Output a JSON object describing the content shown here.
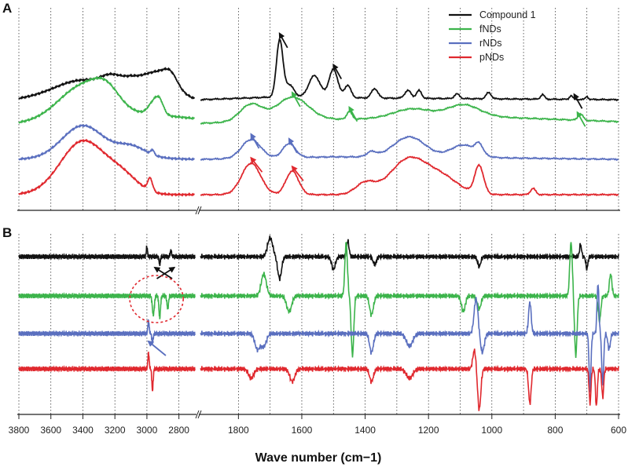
{
  "figure": {
    "panel_labels": [
      "A",
      "B"
    ],
    "xlabel": "Wave number (cm−1)"
  },
  "colors": {
    "Compound 1": "#111111",
    "fNDs": "#3cb44b",
    "rNDs": "#5a6fbf",
    "pNDs": "#e0282e",
    "marker_black": "#111111",
    "marker_green": "#3cb44b",
    "marker_blue": "#5a6fbf",
    "marker_red": "#e0282e",
    "circle": "#e0282e"
  },
  "chart_data": [
    {
      "panel": "A",
      "type": "line",
      "title": "",
      "xlabel": "Wave number (cm−1)",
      "ylabel": "",
      "x_axis": "reversed, broken between 2700 and 1920",
      "xlim_left_segment": [
        3800,
        2700
      ],
      "xlim_right_segment": [
        1920,
        600
      ],
      "ticks_left": [
        "3800",
        "3600",
        "3400",
        "3200",
        "3000",
        "2800"
      ],
      "ticks_right": [
        "1800",
        "1600",
        "1400",
        "1200",
        "1000",
        "800",
        "600"
      ],
      "grid": "dotted vertical",
      "legend": {
        "placement": "top-right",
        "entries": [
          "Compound 1",
          "fNDs",
          "rNDs",
          "pNDs"
        ]
      },
      "series": [
        {
          "name": "Compound 1",
          "offset": 3,
          "scale": 1.0,
          "baseline_left": [
            [
              3800,
              0.02
            ],
            [
              3100,
              0.35
            ],
            [
              2700,
              0.0
            ]
          ],
          "baseline_right": [
            [
              1920,
              0.0
            ],
            [
              1700,
              0.08
            ],
            [
              1200,
              0.04
            ],
            [
              600,
              0.0
            ]
          ],
          "peaks": [
            [
              3420,
              0.42,
              160
            ],
            [
              3230,
              0.25,
              60
            ],
            [
              3100,
              0.25,
              80
            ],
            [
              2920,
              0.65,
              90
            ],
            [
              2850,
              0.3,
              40
            ],
            [
              1670,
              1.8,
              10
            ],
            [
              1640,
              0.4,
              15
            ],
            [
              1560,
              0.7,
              18
            ],
            [
              1500,
              0.9,
              14
            ],
            [
              1455,
              0.4,
              10
            ],
            [
              1370,
              0.3,
              10
            ],
            [
              1265,
              0.25,
              10
            ],
            [
              1230,
              0.25,
              8
            ],
            [
              1110,
              0.15,
              8
            ],
            [
              1010,
              0.2,
              8
            ],
            [
              840,
              0.15,
              6
            ],
            [
              750,
              0.12,
              5
            ],
            [
              700,
              0.1,
              4
            ]
          ]
        },
        {
          "name": "fNDs",
          "offset": 2,
          "scale": 1.0,
          "baseline_left": [
            [
              3800,
              0.0
            ],
            [
              3000,
              0.3
            ],
            [
              2700,
              0.15
            ]
          ],
          "baseline_right": [
            [
              1920,
              0.0
            ],
            [
              1500,
              0.12
            ],
            [
              1000,
              0.2
            ],
            [
              600,
              0.05
            ]
          ],
          "peaks": [
            [
              3400,
              1.05,
              150
            ],
            [
              3250,
              0.5,
              80
            ],
            [
              2960,
              0.35,
              30
            ],
            [
              2920,
              0.4,
              25
            ],
            [
              1760,
              0.55,
              35
            ],
            [
              1630,
              0.75,
              50
            ],
            [
              1450,
              0.25,
              8
            ],
            [
              1250,
              0.3,
              60
            ],
            [
              1090,
              0.4,
              50
            ],
            [
              720,
              0.2,
              8
            ]
          ]
        },
        {
          "name": "rNDs",
          "offset": 1,
          "scale": 1.0,
          "baseline_left": [
            [
              3800,
              0.0
            ],
            [
              3000,
              0.05
            ],
            [
              2700,
              0.0
            ]
          ],
          "baseline_right": [
            [
              1920,
              0.0
            ],
            [
              1500,
              0.08
            ],
            [
              1000,
              0.05
            ],
            [
              600,
              0.0
            ]
          ],
          "peaks": [
            [
              3400,
              1.05,
              130
            ],
            [
              3100,
              0.35,
              90
            ],
            [
              2965,
              0.15,
              10
            ],
            [
              1760,
              0.6,
              30
            ],
            [
              1640,
              0.45,
              20
            ],
            [
              1380,
              0.15,
              15
            ],
            [
              1260,
              0.65,
              50
            ],
            [
              1090,
              0.4,
              40
            ],
            [
              1040,
              0.3,
              12
            ]
          ]
        },
        {
          "name": "pNDs",
          "offset": 0,
          "scale": 1.0,
          "baseline_left": [
            [
              3800,
              0.0
            ],
            [
              3000,
              0.0
            ],
            [
              2700,
              0.0
            ]
          ],
          "baseline_right": [
            [
              1920,
              0.0
            ],
            [
              600,
              0.0
            ]
          ],
          "peaks": [
            [
              3400,
              1.7,
              140
            ],
            [
              3150,
              0.5,
              100
            ],
            [
              2980,
              0.4,
              15
            ],
            [
              1760,
              1.0,
              30
            ],
            [
              1630,
              0.75,
              20
            ],
            [
              1400,
              0.35,
              30
            ],
            [
              1260,
              1.15,
              60
            ],
            [
              1150,
              0.45,
              50
            ],
            [
              1040,
              0.9,
              14
            ],
            [
              870,
              0.2,
              8
            ]
          ]
        }
      ],
      "markers": [
        {
          "color": "marker_black",
          "x": 1670,
          "series": "Compound 1"
        },
        {
          "color": "marker_black",
          "x": 1500,
          "series": "Compound 1"
        },
        {
          "color": "marker_black",
          "x": 740,
          "series": "Compound 1"
        },
        {
          "color": "marker_green",
          "x": 1630,
          "series": "fNDs"
        },
        {
          "color": "marker_green",
          "x": 1450,
          "series": "fNDs"
        },
        {
          "color": "marker_green",
          "x": 730,
          "series": "fNDs"
        },
        {
          "color": "marker_blue",
          "x": 1760,
          "series": "rNDs"
        },
        {
          "color": "marker_blue",
          "x": 1640,
          "series": "rNDs"
        },
        {
          "color": "marker_red",
          "x": 1760,
          "series": "pNDs"
        },
        {
          "color": "marker_red",
          "x": 1630,
          "series": "pNDs"
        }
      ]
    },
    {
      "panel": "B",
      "type": "line",
      "title": "",
      "xlabel": "Wave number (cm−1)",
      "ylabel": "",
      "description_kind": "second derivative spectra",
      "series": [
        {
          "name": "Compound 1",
          "offset": 3,
          "features": [
            [
              3000,
              0.3,
              4
            ],
            [
              2920,
              -0.25,
              4
            ],
            [
              2850,
              0.2,
              4
            ],
            [
              1700,
              0.6,
              8
            ],
            [
              1670,
              -0.7,
              6
            ],
            [
              1500,
              -0.4,
              6
            ],
            [
              1455,
              0.5,
              4
            ],
            [
              1370,
              -0.25,
              5
            ],
            [
              1040,
              -0.3,
              5
            ],
            [
              720,
              0.4,
              3
            ],
            [
              700,
              -0.4,
              3
            ]
          ]
        },
        {
          "name": "fNDs",
          "offset": 2,
          "features": [
            [
              2960,
              -0.6,
              6
            ],
            [
              2920,
              -0.7,
              5
            ],
            [
              2870,
              -0.4,
              5
            ],
            [
              1720,
              0.7,
              8
            ],
            [
              1640,
              -0.5,
              8
            ],
            [
              1460,
              1.7,
              4
            ],
            [
              1440,
              -1.9,
              4
            ],
            [
              1380,
              -0.6,
              6
            ],
            [
              1090,
              -0.5,
              6
            ],
            [
              1040,
              -0.4,
              6
            ],
            [
              750,
              1.7,
              4
            ],
            [
              735,
              -1.9,
              4
            ],
            [
              660,
              -0.8,
              4
            ],
            [
              625,
              0.7,
              4
            ]
          ]
        },
        {
          "name": "rNDs",
          "offset": 1,
          "features": [
            [
              2990,
              0.4,
              4
            ],
            [
              2965,
              -0.3,
              4
            ],
            [
              1740,
              -0.5,
              8
            ],
            [
              1720,
              -0.4,
              8
            ],
            [
              1380,
              -0.6,
              6
            ],
            [
              1260,
              -0.4,
              10
            ],
            [
              1050,
              1.1,
              6
            ],
            [
              1030,
              -0.6,
              6
            ],
            [
              880,
              1.0,
              4
            ],
            [
              690,
              -1.8,
              3
            ],
            [
              665,
              1.6,
              3
            ],
            [
              650,
              -1.6,
              3
            ],
            [
              630,
              -0.5,
              4
            ]
          ]
        },
        {
          "name": "pNDs",
          "offset": 0,
          "features": [
            [
              2990,
              0.5,
              4
            ],
            [
              2965,
              -0.7,
              4
            ],
            [
              1760,
              -0.3,
              8
            ],
            [
              1630,
              -0.4,
              8
            ],
            [
              1380,
              -0.4,
              6
            ],
            [
              1260,
              -0.3,
              10
            ],
            [
              1055,
              0.6,
              5
            ],
            [
              1040,
              -1.3,
              5
            ],
            [
              880,
              -1.1,
              4
            ],
            [
              690,
              -1.1,
              3
            ],
            [
              670,
              -1.2,
              3
            ],
            [
              650,
              -0.9,
              3
            ]
          ]
        }
      ],
      "markers": [
        {
          "color": "marker_black",
          "x": 2950,
          "series": "Compound 1"
        },
        {
          "color": "marker_black",
          "x": 2830,
          "series": "Compound 1"
        },
        {
          "color": "marker_blue",
          "x": 2990,
          "series": "rNDs"
        }
      ],
      "annotation": {
        "type": "dashed circle",
        "color": "circle",
        "center_x": 2940,
        "series": "fNDs"
      }
    }
  ]
}
